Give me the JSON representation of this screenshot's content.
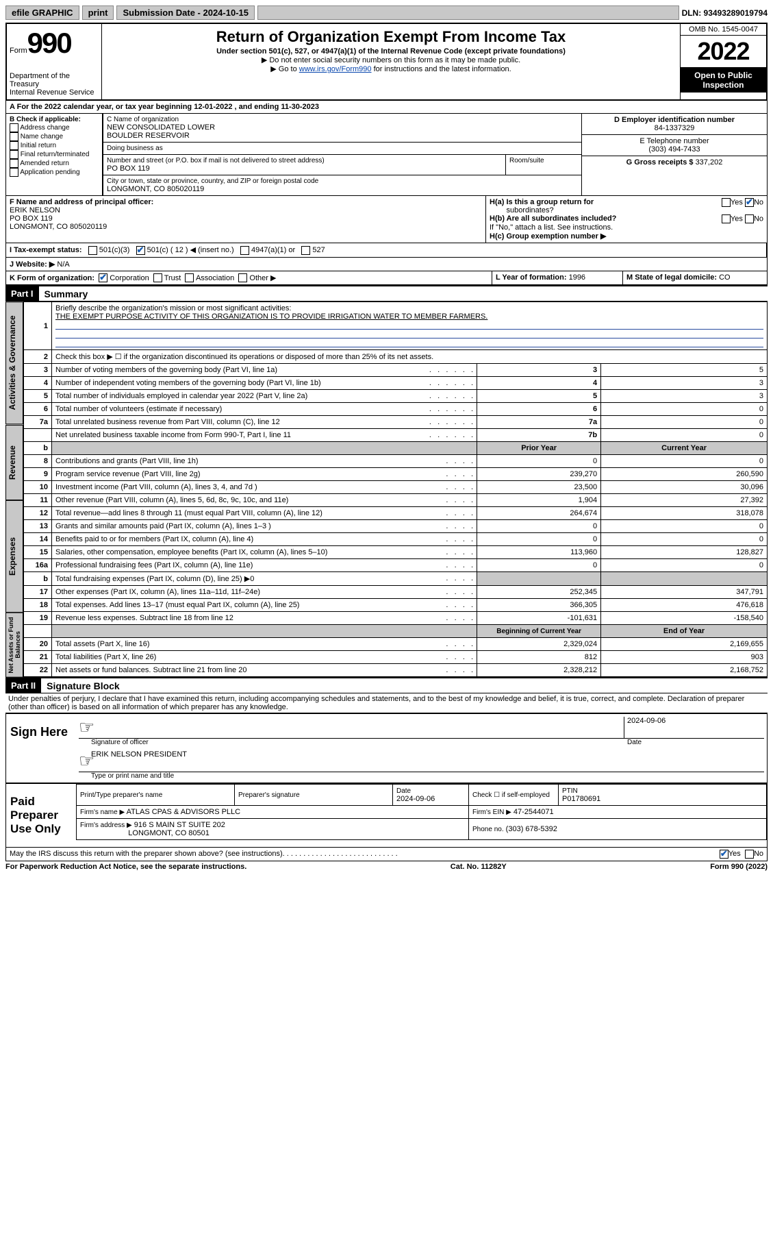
{
  "topbar": {
    "efile": "efile GRAPHIC",
    "print": "print",
    "sub_date_label": "Submission Date - 2024-10-15",
    "dln": "DLN: 93493289019794"
  },
  "header": {
    "form_word": "Form",
    "form_num": "990",
    "dept": "Department of the Treasury",
    "irs": "Internal Revenue Service",
    "title": "Return of Organization Exempt From Income Tax",
    "subtitle": "Under section 501(c), 527, or 4947(a)(1) of the Internal Revenue Code (except private foundations)",
    "note1": "▶ Do not enter social security numbers on this form as it may be made public.",
    "note2_pre": "▶ Go to ",
    "note2_link": "www.irs.gov/Form990",
    "note2_post": " for instructions and the latest information.",
    "omb": "OMB No. 1545-0047",
    "year": "2022",
    "open": "Open to Public Inspection"
  },
  "linea": {
    "text": "For the 2022 calendar year, or tax year beginning 12-01-2022   , and ending 11-30-2023"
  },
  "b": {
    "label": "B Check if applicable:",
    "opts": [
      "Address change",
      "Name change",
      "Initial return",
      "Final return/terminated",
      "Amended return",
      "Application pending"
    ]
  },
  "c": {
    "name_label": "C Name of organization",
    "name": "NEW CONSOLIDATED LOWER",
    "name2": "BOULDER RESERVOIR",
    "dba": "Doing business as",
    "addr_label": "Number and street (or P.O. box if mail is not delivered to street address)",
    "room": "Room/suite",
    "addr": "PO BOX 119",
    "city_label": "City or town, state or province, country, and ZIP or foreign postal code",
    "city": "LONGMONT, CO  805020119"
  },
  "d": {
    "label": "D Employer identification number",
    "ein": "84-1337329",
    "tel_label": "E Telephone number",
    "tel": "(303) 494-7433",
    "gross_label": "G Gross receipts $",
    "gross": "337,202"
  },
  "f": {
    "label": "F  Name and address of principal officer:",
    "name": "ERIK NELSON",
    "addr1": "PO BOX 119",
    "addr2": "LONGMONT, CO  805020119"
  },
  "h": {
    "a_label": "H(a)  Is this a group return for",
    "a_sub": "subordinates?",
    "b_label": "H(b)  Are all subordinates included?",
    "c_note": "If \"No,\" attach a list. See instructions.",
    "c_label": "H(c)  Group exemption number ▶"
  },
  "i": {
    "label": "I    Tax-exempt status:",
    "a": "501(c)(3)",
    "b": "501(c) ( 12 ) ◀ (insert no.)",
    "c": "4947(a)(1) or",
    "d": "527"
  },
  "j": {
    "label": "J   Website: ▶",
    "val": "N/A"
  },
  "k": {
    "label": "K Form of organization:",
    "corp": "Corporation",
    "trust": "Trust",
    "assoc": "Association",
    "other": "Other ▶"
  },
  "l": {
    "label": "L Year of formation:",
    "val": "1996"
  },
  "m": {
    "label": "M State of legal domicile:",
    "val": "CO"
  },
  "parts": {
    "p1": "Part I",
    "p1_title": "Summary",
    "p2": "Part II",
    "p2_title": "Signature Block"
  },
  "tabs": {
    "ag": "Activities & Governance",
    "rev": "Revenue",
    "exp": "Expenses",
    "net": "Net Assets or Fund Balances"
  },
  "summary": {
    "r1": "Briefly describe the organization's mission or most significant activities:",
    "r1_text": "THE EXEMPT PURPOSE ACTIVITY OF THIS ORGANIZATION IS TO PROVIDE IRRIGATION WATER TO MEMBER FARMERS.",
    "r2": "Check this box ▶ ☐  if the organization discontinued its operations or disposed of more than 25% of its net assets.",
    "prior": "Prior Year",
    "current": "Current Year",
    "begin": "Beginning of Current Year",
    "end": "End of Year",
    "rows_ag": [
      {
        "n": "3",
        "d": "Number of voting members of the governing body (Part VI, line 1a)",
        "k": "3",
        "v": "5"
      },
      {
        "n": "4",
        "d": "Number of independent voting members of the governing body (Part VI, line 1b)",
        "k": "4",
        "v": "3"
      },
      {
        "n": "5",
        "d": "Total number of individuals employed in calendar year 2022 (Part V, line 2a)",
        "k": "5",
        "v": "3"
      },
      {
        "n": "6",
        "d": "Total number of volunteers (estimate if necessary)",
        "k": "6",
        "v": "0"
      },
      {
        "n": "7a",
        "d": "Total unrelated business revenue from Part VIII, column (C), line 12",
        "k": "7a",
        "v": "0"
      },
      {
        "n": "",
        "d": "Net unrelated business taxable income from Form 990-T, Part I, line 11",
        "k": "7b",
        "v": "0"
      }
    ],
    "rows_rev": [
      {
        "n": "8",
        "d": "Contributions and grants (Part VIII, line 1h)",
        "p": "0",
        "c": "0"
      },
      {
        "n": "9",
        "d": "Program service revenue (Part VIII, line 2g)",
        "p": "239,270",
        "c": "260,590"
      },
      {
        "n": "10",
        "d": "Investment income (Part VIII, column (A), lines 3, 4, and 7d )",
        "p": "23,500",
        "c": "30,096"
      },
      {
        "n": "11",
        "d": "Other revenue (Part VIII, column (A), lines 5, 6d, 8c, 9c, 10c, and 11e)",
        "p": "1,904",
        "c": "27,392"
      },
      {
        "n": "12",
        "d": "Total revenue—add lines 8 through 11 (must equal Part VIII, column (A), line 12)",
        "p": "264,674",
        "c": "318,078"
      }
    ],
    "rows_exp": [
      {
        "n": "13",
        "d": "Grants and similar amounts paid (Part IX, column (A), lines 1–3 )",
        "p": "0",
        "c": "0"
      },
      {
        "n": "14",
        "d": "Benefits paid to or for members (Part IX, column (A), line 4)",
        "p": "0",
        "c": "0"
      },
      {
        "n": "15",
        "d": "Salaries, other compensation, employee benefits (Part IX, column (A), lines 5–10)",
        "p": "113,960",
        "c": "128,827"
      },
      {
        "n": "16a",
        "d": "Professional fundraising fees (Part IX, column (A), line 11e)",
        "p": "0",
        "c": "0"
      },
      {
        "n": "b",
        "d": "Total fundraising expenses (Part IX, column (D), line 25) ▶0",
        "p": "",
        "c": ""
      },
      {
        "n": "17",
        "d": "Other expenses (Part IX, column (A), lines 11a–11d, 11f–24e)",
        "p": "252,345",
        "c": "347,791"
      },
      {
        "n": "18",
        "d": "Total expenses. Add lines 13–17 (must equal Part IX, column (A), line 25)",
        "p": "366,305",
        "c": "476,618"
      },
      {
        "n": "19",
        "d": "Revenue less expenses. Subtract line 18 from line 12",
        "p": "-101,631",
        "c": "-158,540"
      }
    ],
    "rows_net": [
      {
        "n": "20",
        "d": "Total assets (Part X, line 16)",
        "p": "2,329,024",
        "c": "2,169,655"
      },
      {
        "n": "21",
        "d": "Total liabilities (Part X, line 26)",
        "p": "812",
        "c": "903"
      },
      {
        "n": "22",
        "d": "Net assets or fund balances. Subtract line 21 from line 20",
        "p": "2,328,212",
        "c": "2,168,752"
      }
    ]
  },
  "sig": {
    "decl": "Under penalties of perjury, I declare that I have examined this return, including accompanying schedules and statements, and to the best of my knowledge and belief, it is true, correct, and complete. Declaration of preparer (other than officer) is based on all information of which preparer has any knowledge.",
    "sign": "Sign Here",
    "date": "2024-09-06",
    "sig_label": "Signature of officer",
    "date_label": "Date",
    "officer": "ERIK NELSON  PRESIDENT",
    "officer_label": "Type or print name and title",
    "paid": "Paid Preparer Use Only",
    "cols": {
      "a": "Print/Type preparer's name",
      "b": "Preparer's signature",
      "c": "Date",
      "d": "Check ☐ if self-employed",
      "e": "PTIN"
    },
    "prep_date": "2024-09-06",
    "ptin": "P01780691",
    "firm_label": "Firm's name   ▶",
    "firm": "ATLAS CPAS & ADVISORS PLLC",
    "ein_label": "Firm's EIN ▶",
    "ein": "47-2544071",
    "addr_label": "Firm's address ▶",
    "addr": "916 S MAIN ST SUITE 202",
    "addr2": "LONGMONT, CO  80501",
    "phone_label": "Phone no.",
    "phone": "(303) 678-5392",
    "discuss": "May the IRS discuss this return with the preparer shown above? (see instructions)",
    "yes": "Yes",
    "no": "No"
  },
  "footer": {
    "a": "For Paperwork Reduction Act Notice, see the separate instructions.",
    "b": "Cat. No. 11282Y",
    "c": "Form 990 (2022)"
  }
}
